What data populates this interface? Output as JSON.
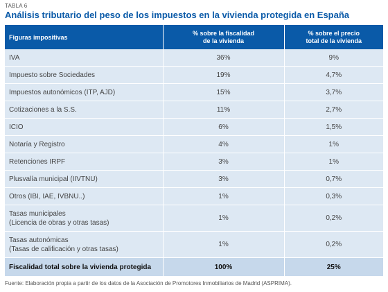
{
  "header": {
    "label": "TABLA 6",
    "title": "Análisis tributario del peso de los impuestos en la vivienda protegida en España"
  },
  "table": {
    "columns": {
      "figuras": "Figuras impositivas",
      "fiscalidad_line1": "% sobre la fiscalidad",
      "fiscalidad_line2": "de la vivienda",
      "precio_line1": "% sobre el precio",
      "precio_line2": "total de la vivienda"
    },
    "rows": [
      {
        "figura": "IVA",
        "fiscalidad": "36%",
        "precio": "9%"
      },
      {
        "figura": "Impuesto sobre Sociedades",
        "fiscalidad": "19%",
        "precio": "4,7%"
      },
      {
        "figura": "Impuestos autonómicos (ITP, AJD)",
        "fiscalidad": "15%",
        "precio": "3,7%"
      },
      {
        "figura": "Cotizaciones a la S.S.",
        "fiscalidad": "11%",
        "precio": "2,7%"
      },
      {
        "figura": "ICIO",
        "fiscalidad": "6%",
        "precio": "1,5%"
      },
      {
        "figura": "Notaría y Registro",
        "fiscalidad": "4%",
        "precio": "1%"
      },
      {
        "figura": "Retenciones IRPF",
        "fiscalidad": "3%",
        "precio": "1%"
      },
      {
        "figura": "Plusvalía municipal (IIVTNU)",
        "fiscalidad": "3%",
        "precio": "0,7%"
      },
      {
        "figura": "Otros (IBI, IAE, IVBNU..)",
        "fiscalidad": "1%",
        "precio": "0,3%"
      },
      {
        "figura_line1": "Tasas municipales",
        "figura_line2": "(Licencia de obras y otras tasas)",
        "fiscalidad": "1%",
        "precio": "0,2%"
      },
      {
        "figura_line1": "Tasas autonómicas",
        "figura_line2": "(Tasas de calificación y otras tasas)",
        "fiscalidad": "1%",
        "precio": "0,2%"
      }
    ],
    "total": {
      "figura": "Fiscalidad total sobre la vivienda protegida",
      "fiscalidad": "100%",
      "precio": "25%"
    }
  },
  "footer": {
    "source": "Fuente: Elaboración propia a partir de los datos de la Asociación de Promotores Inmobiliarios de Madrid (ASPRIMA)."
  }
}
